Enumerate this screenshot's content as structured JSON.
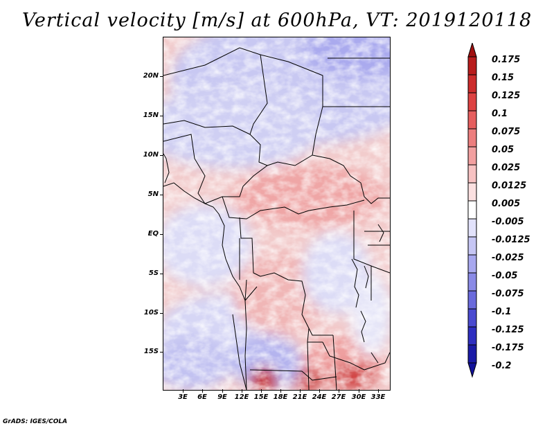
{
  "title": "Vertical velocity [m/s] at 600hPa, VT: 2019120118",
  "lat_labels": [
    "20N",
    "15N",
    "10N",
    "5N",
    "EQ",
    "5S",
    "10S",
    "15S"
  ],
  "lon_labels": [
    "3E",
    "6E",
    "9E",
    "12E",
    "15E",
    "18E",
    "21E",
    "24E",
    "27E",
    "30E",
    "33E"
  ],
  "colorbar": {
    "labels": [
      "0.175",
      "0.15",
      "0.125",
      "0.1",
      "0.075",
      "0.05",
      "0.025",
      "0.0125",
      "0.005",
      "-0.005",
      "-0.0125",
      "-0.025",
      "-0.05",
      "-0.075",
      "-0.1",
      "-0.125",
      "-0.175",
      "-0.2"
    ],
    "colors": [
      "#a01010",
      "#b81c1c",
      "#cc2c2c",
      "#dd4242",
      "#e65e5e",
      "#ec7e7e",
      "#f2a0a0",
      "#f7c2c2",
      "#fbe0e0",
      "#ffffff",
      "#e2e2fb",
      "#c6c6f4",
      "#a8a8ef",
      "#8a8ae6",
      "#6a6adc",
      "#4a4ad0",
      "#2e2ec0",
      "#1a1aa6",
      "#12129a"
    ]
  },
  "credit": "GrADS: IGES/COLA"
}
